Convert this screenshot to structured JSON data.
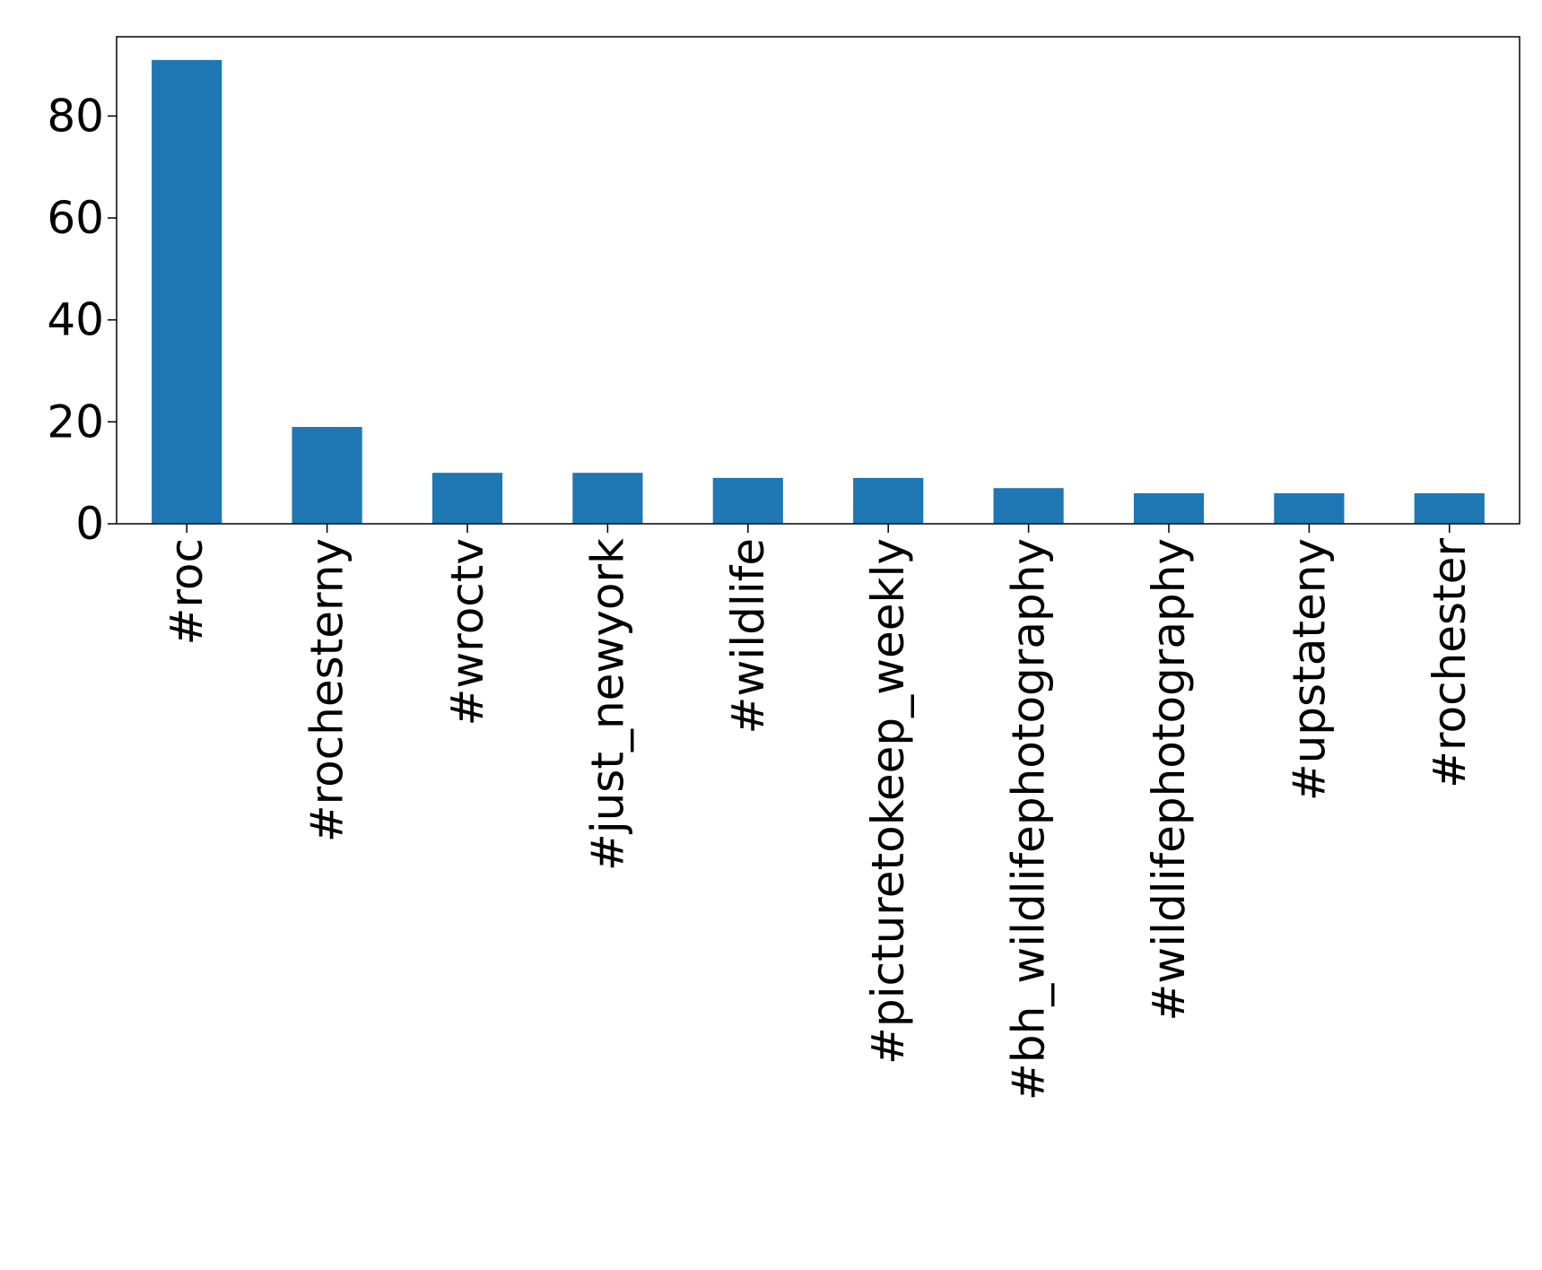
{
  "chart_data": {
    "type": "bar",
    "title": "",
    "xlabel": "",
    "ylabel": "",
    "categories": [
      "#roc",
      "#rochesterny",
      "#wroctv",
      "#just_newyork",
      "#wildlife",
      "#picturetokeep_weekly",
      "#bh_wildlifephotography",
      "#wildlifephotography",
      "#upstateny",
      "#rochester"
    ],
    "values": [
      91,
      19,
      10,
      10,
      9,
      9,
      7,
      6,
      6,
      6
    ],
    "ylim": [
      0,
      95.55
    ],
    "yticks": [
      0,
      20,
      40,
      60,
      80
    ],
    "ytick_labels": [
      "0",
      "20",
      "40",
      "60",
      "80"
    ],
    "grid": false,
    "legend": "none",
    "bar_color": "#1f77b4"
  }
}
